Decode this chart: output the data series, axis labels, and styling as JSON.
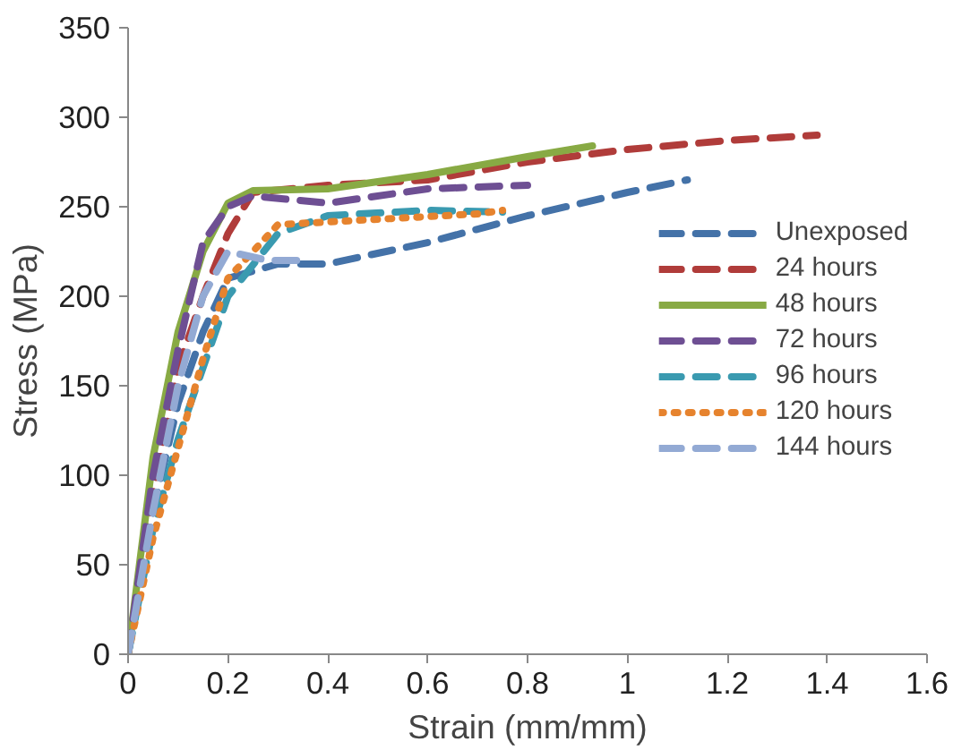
{
  "chart_data": {
    "type": "line",
    "xlabel": "Strain (mm/mm)",
    "ylabel": "Stress (MPa)",
    "xlim": [
      0,
      1.6
    ],
    "xticks": [
      0,
      0.2,
      0.4,
      0.6,
      0.8,
      1,
      1.2,
      1.4,
      1.6
    ],
    "ylim": [
      0,
      350
    ],
    "yticks": [
      0,
      50,
      100,
      150,
      200,
      250,
      300,
      350
    ],
    "grid": false,
    "legend": "right",
    "series": [
      {
        "name": "Unexposed",
        "color": "#4472a8",
        "line_style": "dashed",
        "x": [
          0,
          0.05,
          0.1,
          0.15,
          0.2,
          0.3,
          0.4,
          0.6,
          0.8,
          1.0,
          1.12
        ],
        "values": [
          0,
          80,
          140,
          180,
          210,
          218,
          218,
          230,
          245,
          258,
          265
        ]
      },
      {
        "name": "24 hours",
        "color": "#b03c3a",
        "line_style": "dashed",
        "x": [
          0,
          0.05,
          0.1,
          0.15,
          0.2,
          0.25,
          0.4,
          0.6,
          0.8,
          1.0,
          1.2,
          1.38
        ],
        "values": [
          0,
          90,
          160,
          200,
          235,
          258,
          262,
          265,
          275,
          282,
          287,
          290
        ]
      },
      {
        "name": "48 hours",
        "color": "#88aa44",
        "line_style": "solid",
        "x": [
          0,
          0.05,
          0.1,
          0.15,
          0.2,
          0.25,
          0.4,
          0.6,
          0.8,
          0.93
        ],
        "values": [
          0,
          110,
          180,
          225,
          252,
          259,
          260,
          268,
          278,
          284
        ]
      },
      {
        "name": "72 hours",
        "color": "#6e4f93",
        "line_style": "dashed",
        "x": [
          0,
          0.05,
          0.1,
          0.15,
          0.2,
          0.25,
          0.4,
          0.6,
          0.8
        ],
        "values": [
          0,
          100,
          170,
          230,
          250,
          256,
          252,
          260,
          262
        ]
      },
      {
        "name": "96 hours",
        "color": "#3a9ab0",
        "line_style": "dashed",
        "x": [
          0,
          0.05,
          0.1,
          0.15,
          0.2,
          0.3,
          0.4,
          0.6,
          0.75
        ],
        "values": [
          0,
          70,
          120,
          160,
          200,
          235,
          245,
          248,
          247
        ]
      },
      {
        "name": "120 hours",
        "color": "#e6832e",
        "line_style": "dotted",
        "x": [
          0,
          0.05,
          0.1,
          0.15,
          0.2,
          0.3,
          0.5,
          0.7,
          0.75
        ],
        "values": [
          0,
          65,
          115,
          165,
          210,
          240,
          243,
          246,
          248
        ]
      },
      {
        "name": "144 hours",
        "color": "#93aad4",
        "line_style": "dashed",
        "x": [
          0,
          0.05,
          0.1,
          0.15,
          0.2,
          0.28,
          0.35
        ],
        "values": [
          0,
          80,
          150,
          200,
          225,
          220,
          220
        ]
      }
    ]
  }
}
